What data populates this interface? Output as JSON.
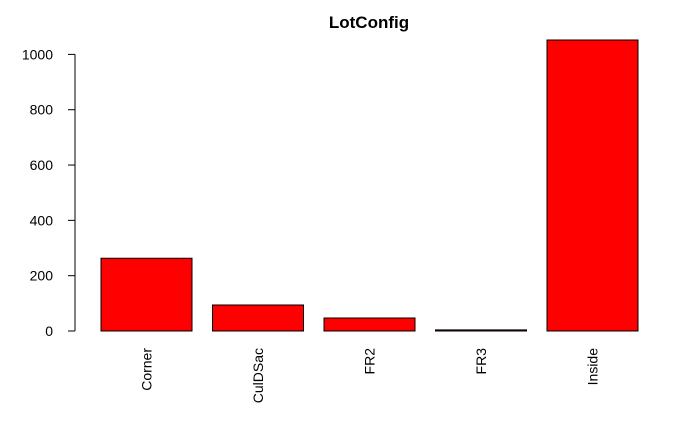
{
  "chart_data": {
    "type": "bar",
    "title": "LotConfig",
    "xlabel": "",
    "ylabel": "",
    "categories": [
      "Corner",
      "CulDSac",
      "FR2",
      "FR3",
      "Inside"
    ],
    "values": [
      263,
      94,
      47,
      4,
      1052
    ],
    "ylim": [
      0,
      1052
    ],
    "yticks": [
      0,
      200,
      400,
      600,
      800,
      1000
    ],
    "bar_color": "#ff0000",
    "edge_color": "#000000",
    "grid": false,
    "legend": "none"
  }
}
